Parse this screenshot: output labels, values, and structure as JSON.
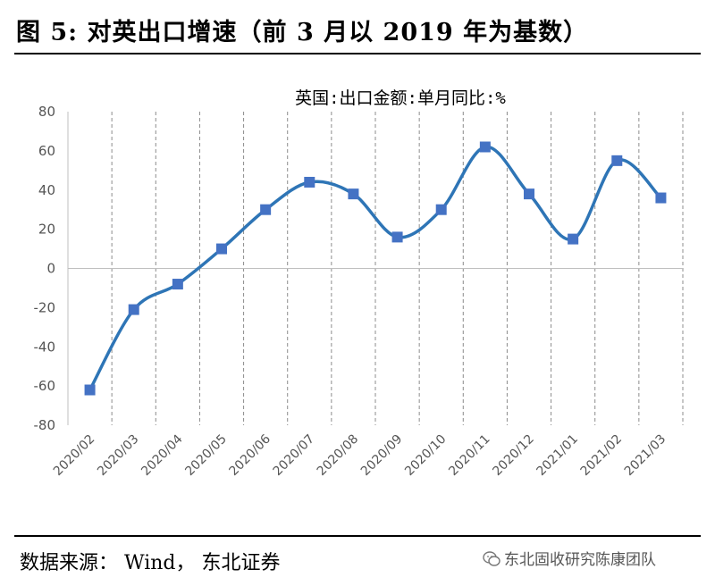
{
  "figure": {
    "title": "图  5:  对英出口增速（前 3 月以 2019 年为基数）",
    "source": "数据来源：  Wind，  东北证券",
    "watermark": "东北固收研究陈康团队"
  },
  "chart_data": {
    "type": "line",
    "title": "英国:出口金额:单月同比:%",
    "xlabel": "",
    "ylabel": "",
    "categories": [
      "2020/02",
      "2020/03",
      "2020/04",
      "2020/05",
      "2020/06",
      "2020/07",
      "2020/08",
      "2020/09",
      "2020/10",
      "2020/11",
      "2020/12",
      "2021/01",
      "2021/02",
      "2021/03"
    ],
    "series": [
      {
        "values": [
          -62,
          -21,
          -8,
          10,
          30,
          44,
          38,
          16,
          30,
          62,
          38,
          15,
          55,
          36
        ]
      }
    ],
    "ylim": [
      -80,
      80
    ],
    "yticks": [
      80,
      60,
      40,
      20,
      0,
      -20,
      -40,
      -60,
      -80
    ],
    "grid": "vertical dashed",
    "color": "#2e75b6",
    "marker_color": "#4472c4"
  }
}
